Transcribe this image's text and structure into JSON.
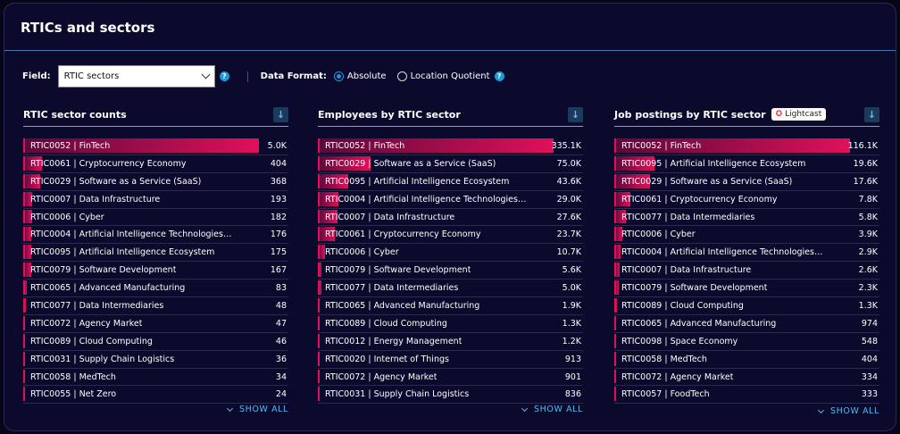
{
  "panel": {
    "title": "RTICs and sectors"
  },
  "controls": {
    "field_label": "Field:",
    "field_value": "RTIC sectors",
    "format_label": "Data Format:",
    "formats": [
      {
        "label": "Absolute",
        "selected": true
      },
      {
        "label": "Location Quotient",
        "selected": false
      }
    ]
  },
  "show_all_label": "SHOW ALL",
  "badge": {
    "label": "Lightcast"
  },
  "accent": "#e0105a",
  "columns": [
    {
      "title": "RTIC sector counts",
      "rows": [
        {
          "label": "RTIC0052 | FinTech",
          "value": 5000,
          "display": "5.0K"
        },
        {
          "label": "RTIC0061 | Cryptocurrency Economy",
          "value": 404,
          "display": "404"
        },
        {
          "label": "RTIC0029 | Software as a Service (SaaS)",
          "value": 368,
          "display": "368"
        },
        {
          "label": "RTIC0007 | Data Infrastructure",
          "value": 193,
          "display": "193"
        },
        {
          "label": "RTIC0006 | Cyber",
          "value": 182,
          "display": "182"
        },
        {
          "label": "RTIC0004 | Artificial Intelligence Technologies a...",
          "value": 176,
          "display": "176"
        },
        {
          "label": "RTIC0095 | Artificial Intelligence Ecosystem",
          "value": 175,
          "display": "175"
        },
        {
          "label": "RTIC0079 | Software Development",
          "value": 167,
          "display": "167"
        },
        {
          "label": "RTIC0065 | Advanced Manufacturing",
          "value": 83,
          "display": "83"
        },
        {
          "label": "RTIC0077 | Data Intermediaries",
          "value": 48,
          "display": "48"
        },
        {
          "label": "RTIC0072 | Agency Market",
          "value": 47,
          "display": "47"
        },
        {
          "label": "RTIC0089 | Cloud Computing",
          "value": 46,
          "display": "46"
        },
        {
          "label": "RTIC0031 | Supply Chain Logistics",
          "value": 36,
          "display": "36"
        },
        {
          "label": "RTIC0058 | MedTech",
          "value": 34,
          "display": "34"
        },
        {
          "label": "RTIC0055 | Net Zero",
          "value": 24,
          "display": "24"
        }
      ]
    },
    {
      "title": "Employees by RTIC sector",
      "rows": [
        {
          "label": "RTIC0052 | FinTech",
          "value": 335100,
          "display": "335.1K"
        },
        {
          "label": "RTIC0029 | Software as a Service (SaaS)",
          "value": 75000,
          "display": "75.0K"
        },
        {
          "label": "RTIC0095 | Artificial Intelligence Ecosystem",
          "value": 43600,
          "display": "43.6K"
        },
        {
          "label": "RTIC0004 | Artificial Intelligence Technologies a...",
          "value": 29000,
          "display": "29.0K"
        },
        {
          "label": "RTIC0007 | Data Infrastructure",
          "value": 27600,
          "display": "27.6K"
        },
        {
          "label": "RTIC0061 | Cryptocurrency Economy",
          "value": 23700,
          "display": "23.7K"
        },
        {
          "label": "RTIC0006 | Cyber",
          "value": 10700,
          "display": "10.7K"
        },
        {
          "label": "RTIC0079 | Software Development",
          "value": 5600,
          "display": "5.6K"
        },
        {
          "label": "RTIC0077 | Data Intermediaries",
          "value": 5000,
          "display": "5.0K"
        },
        {
          "label": "RTIC0065 | Advanced Manufacturing",
          "value": 1900,
          "display": "1.9K"
        },
        {
          "label": "RTIC0089 | Cloud Computing",
          "value": 1300,
          "display": "1.3K"
        },
        {
          "label": "RTIC0012 | Energy Management",
          "value": 1200,
          "display": "1.2K"
        },
        {
          "label": "RTIC0020 | Internet of Things",
          "value": 913,
          "display": "913"
        },
        {
          "label": "RTIC0072 | Agency Market",
          "value": 901,
          "display": "901"
        },
        {
          "label": "RTIC0031 | Supply Chain Logistics",
          "value": 836,
          "display": "836"
        }
      ]
    },
    {
      "title": "Job postings by RTIC sector",
      "rows": [
        {
          "label": "RTIC0052 | FinTech",
          "value": 116100,
          "display": "116.1K"
        },
        {
          "label": "RTIC0095 | Artificial Intelligence Ecosystem",
          "value": 19600,
          "display": "19.6K"
        },
        {
          "label": "RTIC0029 | Software as a Service (SaaS)",
          "value": 17600,
          "display": "17.6K"
        },
        {
          "label": "RTIC0061 | Cryptocurrency Economy",
          "value": 7800,
          "display": "7.8K"
        },
        {
          "label": "RTIC0077 | Data Intermediaries",
          "value": 5800,
          "display": "5.8K"
        },
        {
          "label": "RTIC0006 | Cyber",
          "value": 3900,
          "display": "3.9K"
        },
        {
          "label": "RTIC0004 | Artificial Intelligence Technologies a...",
          "value": 2900,
          "display": "2.9K"
        },
        {
          "label": "RTIC0007 | Data Infrastructure",
          "value": 2600,
          "display": "2.6K"
        },
        {
          "label": "RTIC0079 | Software Development",
          "value": 2300,
          "display": "2.3K"
        },
        {
          "label": "RTIC0089 | Cloud Computing",
          "value": 1300,
          "display": "1.3K"
        },
        {
          "label": "RTIC0065 | Advanced Manufacturing",
          "value": 974,
          "display": "974"
        },
        {
          "label": "RTIC0098 | Space Economy",
          "value": 548,
          "display": "548"
        },
        {
          "label": "RTIC0058 | MedTech",
          "value": 404,
          "display": "404"
        },
        {
          "label": "RTIC0072 | Agency Market",
          "value": 334,
          "display": "334"
        },
        {
          "label": "RTIC0057 | FoodTech",
          "value": 333,
          "display": "333"
        }
      ]
    }
  ]
}
